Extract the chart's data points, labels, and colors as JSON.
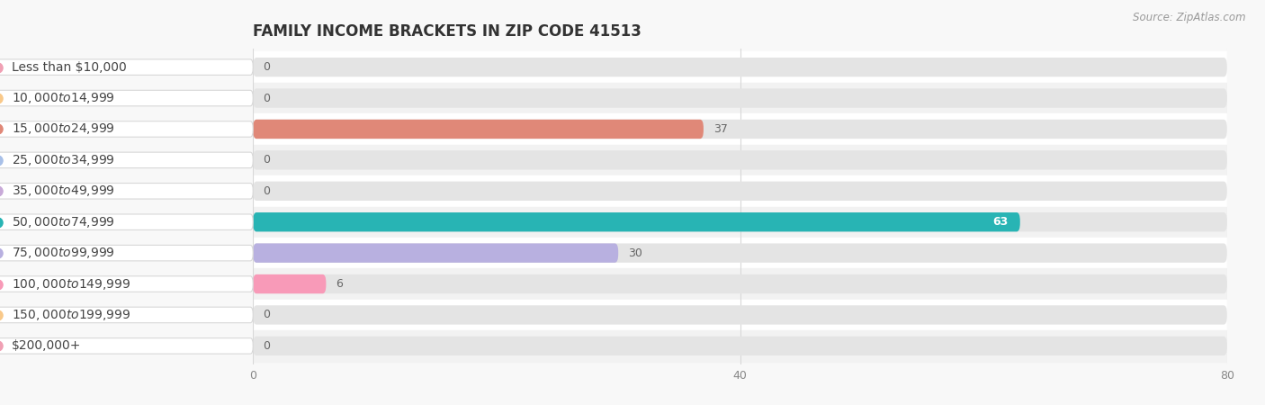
{
  "title": "FAMILY INCOME BRACKETS IN ZIP CODE 41513",
  "source": "Source: ZipAtlas.com",
  "categories": [
    "Less than $10,000",
    "$10,000 to $14,999",
    "$15,000 to $24,999",
    "$25,000 to $34,999",
    "$35,000 to $49,999",
    "$50,000 to $74,999",
    "$75,000 to $99,999",
    "$100,000 to $149,999",
    "$150,000 to $199,999",
    "$200,000+"
  ],
  "values": [
    0,
    0,
    37,
    0,
    0,
    63,
    30,
    6,
    0,
    0
  ],
  "bar_colors": [
    "#f0a0b4",
    "#f9c98a",
    "#e08878",
    "#a8c0e8",
    "#c8aad8",
    "#28b4b4",
    "#b8b0e0",
    "#f89ab8",
    "#f9c98a",
    "#f0a0b4"
  ],
  "xlim": [
    0,
    80
  ],
  "xticks": [
    0,
    40,
    80
  ],
  "row_colors": [
    "#ffffff",
    "#f2f2f2"
  ],
  "background_color": "#f8f8f8",
  "grid_color": "#d8d8d8",
  "bar_bg_color": "#e4e4e4",
  "title_fontsize": 12,
  "label_fontsize": 10,
  "source_fontsize": 8.5
}
